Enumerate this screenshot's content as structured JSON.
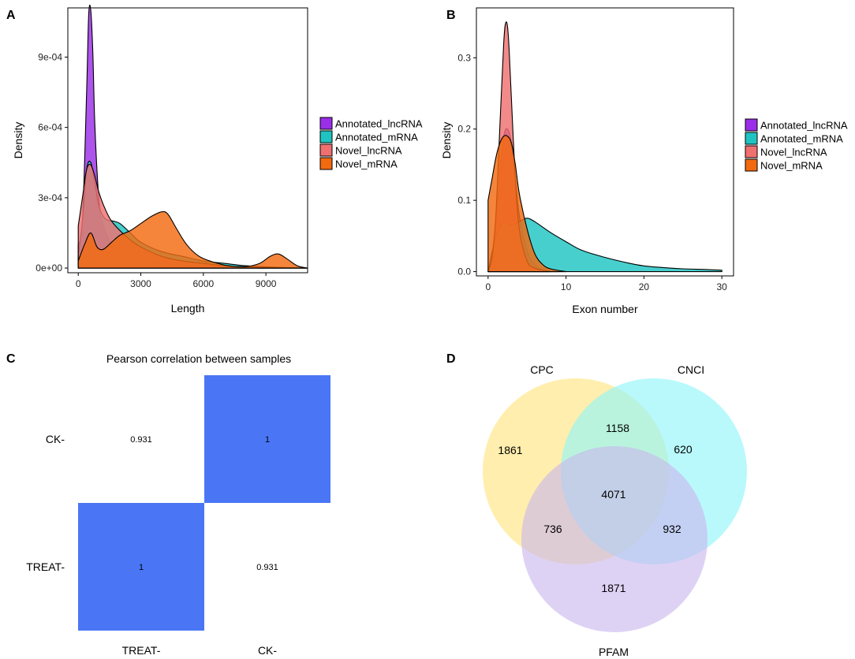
{
  "panels": {
    "a": "A",
    "b": "B",
    "c": "C",
    "d": "D"
  },
  "colors": {
    "annotated_lncrna": "#9B2EE8",
    "annotated_mrna": "#1FC4C2",
    "novel_lncrna": "#F07070",
    "novel_mrna": "#F26A10",
    "heat": "#4A76F5",
    "cpc": "#FFE37A",
    "cnci": "#8EF6FA",
    "pfam": "#C9B6EE"
  },
  "chart_data": [
    {
      "type": "area",
      "panel": "A",
      "title": "",
      "xlabel": "Length",
      "ylabel": "Density",
      "xlim": [
        -500,
        11000
      ],
      "ylim": [
        -2e-05,
        0.00111
      ],
      "xticks": [
        0,
        3000,
        6000,
        9000
      ],
      "xtick_labels": [
        "0",
        "3000",
        "6000",
        "9000"
      ],
      "yticks": [
        0,
        0.0003,
        0.0006,
        0.0009
      ],
      "ytick_labels": [
        "0e+00",
        "3e-04",
        "6e-04",
        "9e-04"
      ],
      "legend": [
        "Annotated_lncRNA",
        "Annotated_mRNA",
        "Novel_lncRNA",
        "Novel_mRNA"
      ],
      "series": [
        {
          "name": "Annotated_lncRNA",
          "x": [
            0,
            200,
            400,
            500,
            600,
            700,
            800,
            1000,
            1200,
            1600,
            2000,
            3000,
            4000,
            6000,
            8000,
            11000
          ],
          "y": [
            0.0001,
            0.0002,
            0.00075,
            0.00108,
            0.0011,
            0.00092,
            0.0006,
            0.00028,
            0.00018,
            0.0001,
            6e-05,
            3e-05,
            2e-05,
            1e-05,
            5e-06,
            0
          ]
        },
        {
          "name": "Annotated_mRNA",
          "x": [
            0,
            200,
            400,
            600,
            800,
            1000,
            1300,
            1700,
            2000,
            2500,
            3000,
            4000,
            5000,
            6000,
            7000,
            8000,
            9000,
            10000,
            11000
          ],
          "y": [
            5e-05,
            0.0002,
            0.00042,
            0.00045,
            0.00036,
            0.00026,
            0.00021,
            0.0002,
            0.00019,
            0.00015,
            0.00011,
            7e-05,
            5e-05,
            3e-05,
            2e-05,
            1e-05,
            5e-06,
            2e-06,
            0
          ]
        },
        {
          "name": "Novel_lncRNA",
          "x": [
            0,
            200,
            400,
            600,
            800,
            1000,
            1300,
            1600,
            2000,
            2500,
            3000,
            4000,
            5000,
            6000,
            7000,
            8000,
            11000
          ],
          "y": [
            0.00018,
            0.0003,
            0.00042,
            0.00044,
            0.00039,
            0.00032,
            0.00025,
            0.0002,
            0.00016,
            0.00012,
            9e-05,
            5e-05,
            3e-05,
            2e-05,
            1e-05,
            5e-06,
            0
          ]
        },
        {
          "name": "Novel_mRNA",
          "x": [
            0,
            300,
            600,
            900,
            1200,
            1600,
            2000,
            2500,
            3000,
            3500,
            4000,
            4300,
            4700,
            5200,
            5800,
            6500,
            7200,
            8000,
            8700,
            9200,
            9600,
            10000,
            10500,
            11000
          ],
          "y": [
            3e-05,
            0.0001,
            0.00015,
            9e-05,
            8e-05,
            0.00011,
            0.00014,
            0.00016,
            0.00019,
            0.00022,
            0.00024,
            0.00023,
            0.00017,
            0.0001,
            5e-05,
            2.5e-05,
            1e-05,
            6e-06,
            2e-05,
            5e-05,
            6e-05,
            4e-05,
            1e-05,
            0
          ]
        }
      ]
    },
    {
      "type": "area",
      "panel": "B",
      "title": "",
      "xlabel": "Exon number",
      "ylabel": "Density",
      "xlim": [
        -1.5,
        31.5
      ],
      "ylim": [
        -0.006,
        0.37
      ],
      "xticks": [
        0,
        10,
        20,
        30
      ],
      "xtick_labels": [
        "0",
        "10",
        "20",
        "30"
      ],
      "yticks": [
        0,
        0.1,
        0.2,
        0.3
      ],
      "ytick_labels": [
        "0.0",
        "0.1",
        "0.2",
        "0.3"
      ],
      "legend": [
        "Annotated_lncRNA",
        "Annotated_mRNA",
        "Novel_lncRNA",
        "Novel_mRNA"
      ],
      "series": [
        {
          "name": "Annotated_lncRNA",
          "x": [
            0,
            0.5,
            1,
            1.5,
            2,
            2.5,
            3,
            3.5,
            4,
            5,
            6,
            7,
            9
          ],
          "y": [
            0,
            0.02,
            0.07,
            0.14,
            0.19,
            0.2,
            0.18,
            0.13,
            0.08,
            0.03,
            0.01,
            0.003,
            0
          ]
        },
        {
          "name": "Annotated_mRNA",
          "x": [
            0,
            1,
            2,
            3,
            4,
            5,
            6,
            8,
            10,
            12,
            15,
            18,
            20,
            22,
            25,
            28,
            30
          ],
          "y": [
            0,
            0.05,
            0.07,
            0.065,
            0.07,
            0.075,
            0.07,
            0.055,
            0.042,
            0.03,
            0.02,
            0.012,
            0.008,
            0.006,
            0.004,
            0.003,
            0.002
          ]
        },
        {
          "name": "Novel_lncRNA",
          "x": [
            0,
            0.5,
            1,
            1.5,
            2,
            2.3,
            2.6,
            3,
            3.5,
            4,
            5,
            6,
            8
          ],
          "y": [
            0,
            0.02,
            0.08,
            0.2,
            0.32,
            0.35,
            0.33,
            0.24,
            0.13,
            0.06,
            0.015,
            0.005,
            0
          ]
        },
        {
          "name": "Novel_mRNA",
          "x": [
            0,
            0.5,
            1,
            1.5,
            2,
            2.5,
            3,
            3.5,
            4,
            5,
            6,
            7,
            8,
            10
          ],
          "y": [
            0.1,
            0.13,
            0.16,
            0.18,
            0.19,
            0.19,
            0.18,
            0.15,
            0.11,
            0.06,
            0.025,
            0.01,
            0.004,
            0
          ]
        }
      ]
    },
    {
      "type": "heatmap",
      "panel": "C",
      "title": "Pearson correlation between samples",
      "rows": [
        "CK-",
        "TREAT-"
      ],
      "cols": [
        "TREAT-",
        "CK-"
      ],
      "values": [
        [
          0.931,
          1
        ],
        [
          1,
          0.931
        ]
      ],
      "labels": [
        [
          "0.931",
          "1"
        ],
        [
          "1",
          "0.931"
        ]
      ]
    },
    {
      "type": "venn",
      "panel": "D",
      "sets": [
        "CPC",
        "CNCI",
        "PFAM"
      ],
      "regions": {
        "cpc_only": 1861,
        "cnci_only": 620,
        "pfam_only": 1871,
        "cpc_cnci": 1158,
        "cpc_pfam": 736,
        "cnci_pfam": 932,
        "all": 4071
      }
    }
  ]
}
